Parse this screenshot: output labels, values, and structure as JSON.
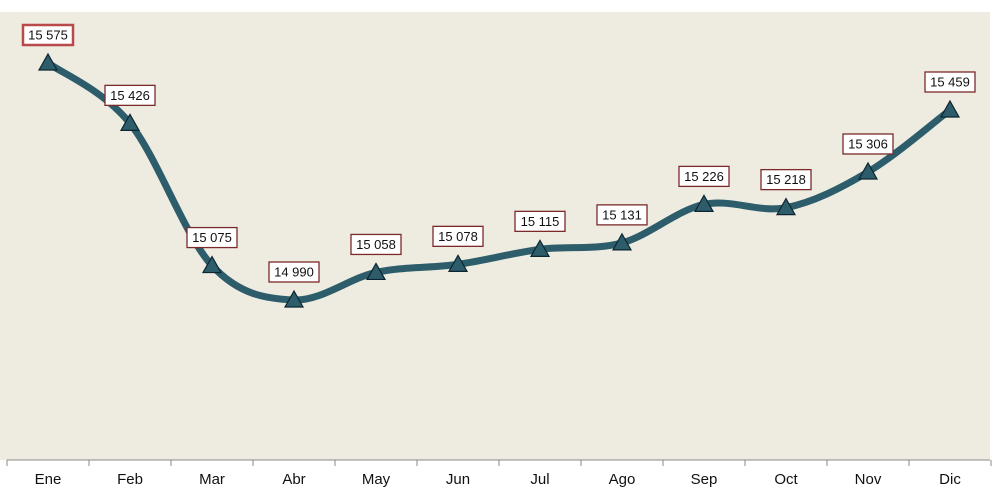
{
  "chart_data": {
    "type": "line",
    "categories": [
      "Ene",
      "Feb",
      "Mar",
      "Abr",
      "May",
      "Jun",
      "Jul",
      "Ago",
      "Sep",
      "Oct",
      "Nov",
      "Dic"
    ],
    "series": [
      {
        "color": "#2d5d6b",
        "values": [
          15575,
          15426,
          15075,
          14990,
          15058,
          15078,
          15115,
          15131,
          15226,
          15218,
          15306,
          15459
        ],
        "value_labels": [
          "15 575",
          "15 426",
          "15 075",
          "14 990",
          "15 058",
          "15 078",
          "15 115",
          "15 131",
          "15 226",
          "15 218",
          "15 306",
          "15 459"
        ]
      }
    ]
  }
}
